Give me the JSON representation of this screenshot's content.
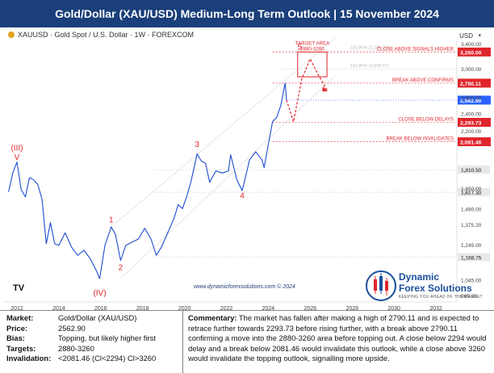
{
  "header": {
    "title": "Gold/Dollar (XAU/USD) Medium-Long Term Outlook | 15 November 2024"
  },
  "toolbar": {
    "label": "XAUUSD · Gold Spot / U.S. Dollar · 1W · FOREXCOM",
    "currency": "USD"
  },
  "watermark": "www.dynamicforexsolutions.com © 2024",
  "logo": {
    "line1": "Dynamic",
    "line2": "Forex Solutions",
    "tagline": "KEEPING YOU AHEAD OF THE MARKET"
  },
  "tv_logo": "TV",
  "colors": {
    "header_bg": "#1a3f7a",
    "price_line": "#1e4bd2",
    "annotation_red": "#e0262c",
    "projection_dash": "#e0262c",
    "current_price_bg": "#2962ff"
  },
  "chart_data": {
    "type": "line",
    "title": "",
    "xlabel": "",
    "ylabel": "",
    "ylim": [
      965,
      3400
    ],
    "y_scale": "log",
    "xlim": [
      2011.5,
      2033
    ],
    "x_ticks": [
      "2012",
      "2014",
      "2016",
      "2018",
      "2020",
      "2022",
      "2024",
      "2026",
      "2028",
      "2030",
      "2032"
    ],
    "y_ticks": [
      "3,400.00",
      "3,000.00",
      "2,600.00",
      "2,400.00",
      "2,200.00",
      "1,810.50",
      "1,650.00",
      "1,617.30",
      "1,490.00",
      "1,375.20",
      "1,245.00",
      "1,168.75",
      "1,045.00",
      "965.00"
    ],
    "series": [
      {
        "x": [
          2011.6,
          2011.8,
          2012.0,
          2012.2,
          2012.4,
          2012.6,
          2012.8,
          2013.0,
          2013.2,
          2013.4,
          2013.6,
          2013.8,
          2014.0,
          2014.3,
          2014.6,
          2014.9,
          2015.2,
          2015.5,
          2015.8,
          2015.95,
          2016.2,
          2016.5,
          2016.7,
          2016.95,
          2017.2,
          2017.5,
          2017.8,
          2018.1,
          2018.4,
          2018.65,
          2018.9,
          2019.2,
          2019.5,
          2019.7,
          2019.9,
          2020.1,
          2020.3,
          2020.6,
          2020.8,
          2021.0,
          2021.2,
          2021.5,
          2021.8,
          2022.1,
          2022.2,
          2022.5,
          2022.75,
          2022.85,
          2023.1,
          2023.4,
          2023.7,
          2023.8,
          2024.0,
          2024.2,
          2024.4,
          2024.6,
          2024.8,
          2024.87
        ],
        "values": [
          1620,
          1780,
          1880,
          1640,
          1580,
          1740,
          1720,
          1680,
          1560,
          1250,
          1390,
          1250,
          1240,
          1320,
          1230,
          1180,
          1210,
          1160,
          1090,
          1050,
          1240,
          1360,
          1310,
          1150,
          1240,
          1260,
          1280,
          1350,
          1280,
          1180,
          1230,
          1320,
          1420,
          1520,
          1490,
          1580,
          1700,
          1960,
          1890,
          1870,
          1700,
          1800,
          1780,
          1800,
          1950,
          1720,
          1630,
          1700,
          1900,
          1980,
          1900,
          1830,
          2050,
          2300,
          2350,
          2500,
          2790,
          2562.9
        ]
      }
    ],
    "wave_labels": [
      {
        "label": "(III)",
        "x": 2012.0,
        "y": 1990
      },
      {
        "label": "V",
        "x": 2012.0,
        "y": 1900
      },
      {
        "label": "(IV)",
        "x": 2015.95,
        "y": 965
      },
      {
        "label": "1",
        "x": 2016.5,
        "y": 1390
      },
      {
        "label": "2",
        "x": 2016.95,
        "y": 1095
      },
      {
        "label": "3",
        "x": 2020.6,
        "y": 2030
      },
      {
        "label": "4",
        "x": 2022.75,
        "y": 1570
      },
      {
        "label": "5",
        "x": 2025.5,
        "y": 3300
      }
    ],
    "levels": [
      {
        "label": "CLOSE ABOVE SIGNALS HIGHER",
        "value": 3260.0,
        "display": "3,260.00",
        "bg": "#e0262c"
      },
      {
        "label": "BREAK ABOVE CONFIRMS",
        "value": 2790.11,
        "display": "2,790.11",
        "bg": "#e0262c"
      },
      {
        "label": "",
        "value": 2562.9,
        "display": "2,562.90",
        "bg": "#2962ff"
      },
      {
        "label": "CLOSE BELOW DELAYS",
        "value": 2293.73,
        "display": "2,293.73",
        "bg": "#e0262c"
      },
      {
        "label": "BREAK BELOW INVALIDATES",
        "value": 2081.46,
        "display": "2,081.46",
        "bg": "#e0262c"
      }
    ],
    "gray_levels": [
      {
        "value": 1810.5,
        "display": "1,810.50"
      },
      {
        "value": 1617.3,
        "display": "1,617.30"
      },
      {
        "value": 1168.75,
        "display": "1,168.75"
      }
    ],
    "target_area": {
      "label_line1": "TARGET AREA",
      "label_line2": "2880-3260",
      "y_low": 2880,
      "y_high": 3260,
      "x_start": 2025.4,
      "x_end": 2026.8
    },
    "fib_labels": [
      {
        "label": "161.80% (3,286.27)",
        "value": 3286
      },
      {
        "label": "161.80% (2,998.57)",
        "value": 2998
      }
    ]
  },
  "info": {
    "market_label": "Market:",
    "market": "Gold/Dollar (XAU/USD)",
    "price_label": "Price:",
    "price": "2562.90",
    "bias_label": "Bias:",
    "bias": "Topping, but likely higher first",
    "targets_label": "Targets:",
    "targets": "2880-3260",
    "invalidation_label": "Invalidation:",
    "invalidation": "<2081.46 (Cl<2294) Cl>3260",
    "commentary_label": "Commentary:",
    "commentary": "The market has fallen after making a high of 2790.11 and is expected to retrace further towards 2293.73 before rising further, with a break above 2790.11 confirming a move into the 2880-3260 area before topping out. A close below 2294 would delay and a break below 2081.46 would invalidate this outlook, while a close above 3260 would invalidate the topping outlook, signalling more upside."
  }
}
